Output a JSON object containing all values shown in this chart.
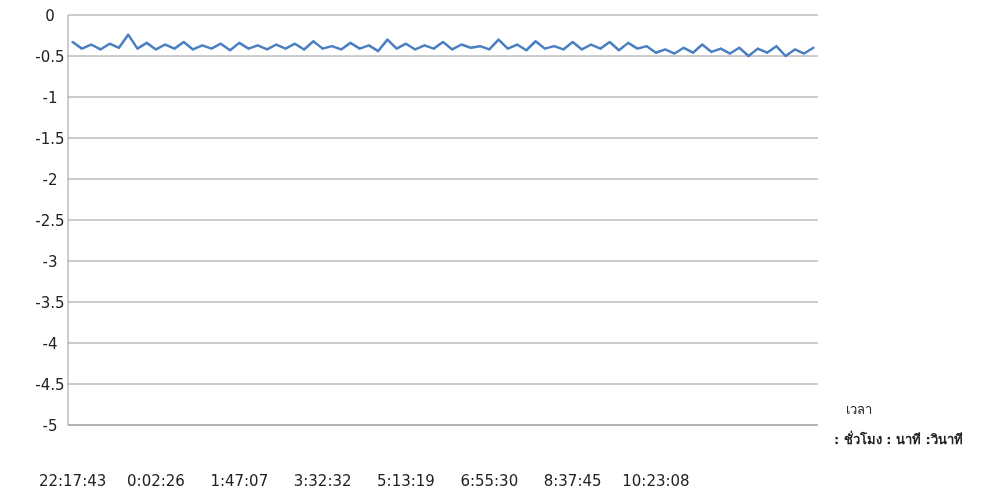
{
  "chart_data": {
    "type": "line",
    "xlabel": "เวลา",
    "annotations": [
      ": ชั่วโมง : นาที :วินาที"
    ],
    "categories": [
      "22:17:43",
      null,
      null,
      null,
      null,
      null,
      null,
      null,
      null,
      "0:02:26",
      null,
      null,
      null,
      null,
      null,
      null,
      null,
      null,
      "1:47:07",
      null,
      null,
      null,
      null,
      null,
      null,
      null,
      null,
      "3:32:32",
      null,
      null,
      null,
      null,
      null,
      null,
      null,
      null,
      "5:13:19",
      null,
      null,
      null,
      null,
      null,
      null,
      null,
      null,
      "6:55:30",
      null,
      null,
      null,
      null,
      null,
      null,
      null,
      null,
      "8:37:45",
      null,
      null,
      null,
      null,
      null,
      null,
      null,
      null,
      "10:23:08",
      null,
      null,
      null,
      null,
      null,
      null,
      null,
      null,
      null,
      null,
      null,
      null,
      null,
      null,
      null,
      null,
      null
    ],
    "series": [
      {
        "color": "#4a7fc1",
        "values": [
          -0.33,
          -0.41,
          -0.36,
          -0.42,
          -0.35,
          -0.4,
          -0.24,
          -0.41,
          -0.34,
          -0.42,
          -0.36,
          -0.41,
          -0.33,
          -0.42,
          -0.37,
          -0.41,
          -0.35,
          -0.43,
          -0.34,
          -0.41,
          -0.37,
          -0.42,
          -0.36,
          -0.41,
          -0.35,
          -0.42,
          -0.32,
          -0.41,
          -0.38,
          -0.42,
          -0.34,
          -0.41,
          -0.37,
          -0.44,
          -0.3,
          -0.41,
          -0.35,
          -0.42,
          -0.37,
          -0.41,
          -0.33,
          -0.42,
          -0.36,
          -0.4,
          -0.38,
          -0.42,
          -0.3,
          -0.41,
          -0.36,
          -0.43,
          -0.32,
          -0.41,
          -0.38,
          -0.42,
          -0.33,
          -0.42,
          -0.36,
          -0.41,
          -0.33,
          -0.43,
          -0.34,
          -0.41,
          -0.38,
          -0.46,
          -0.42,
          -0.47,
          -0.4,
          -0.46,
          -0.36,
          -0.45,
          -0.41,
          -0.47,
          -0.4,
          -0.5,
          -0.41,
          -0.46,
          -0.38,
          -0.5,
          -0.42,
          -0.47,
          -0.4
        ]
      }
    ],
    "ylim": [
      -5,
      0
    ],
    "yticks": [
      0,
      -0.5,
      -1,
      -1.5,
      -2,
      -2.5,
      -3,
      -3.5,
      -4,
      -4.5,
      -5
    ],
    "grid": "y",
    "marker": "none",
    "line_style": "solid"
  }
}
